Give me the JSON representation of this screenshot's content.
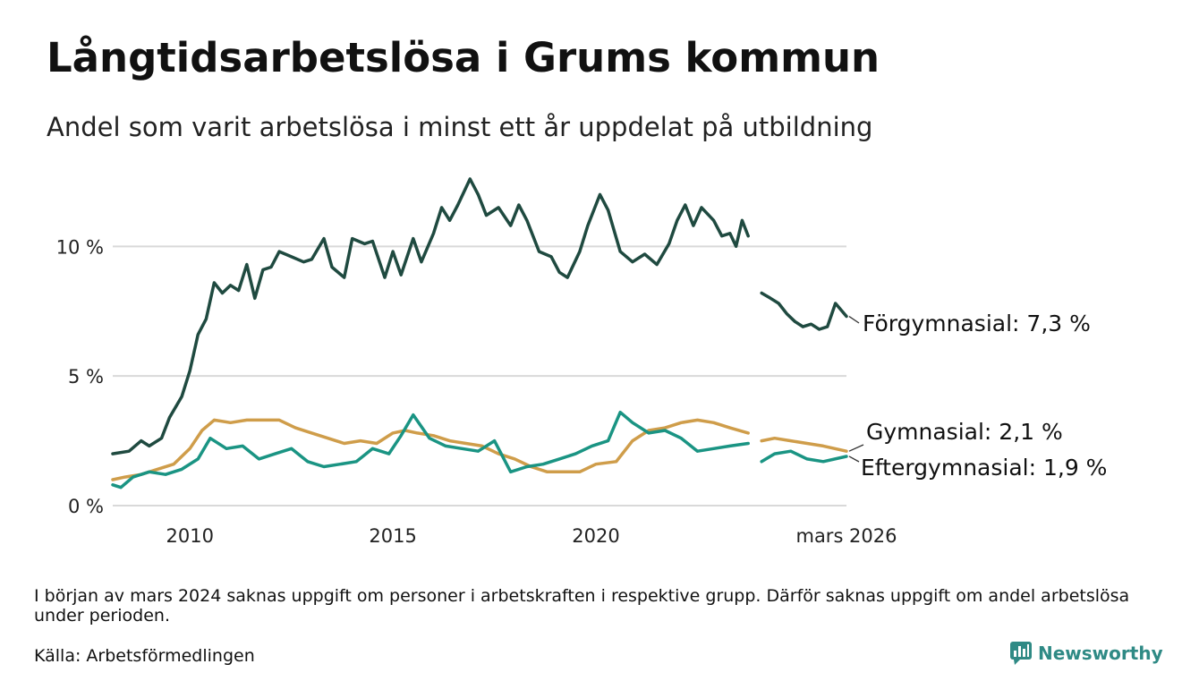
{
  "header": {
    "title": "Långtidsarbetslösa i Grums kommun",
    "subtitle": "Andel som varit arbetslösa i minst ett år uppdelat på utbildning"
  },
  "footer": {
    "note": "I början av mars 2024 saknas uppgift om personer i arbetskraften i respektive grupp. Därför saknas uppgift om andel arbetslösa under perioden.",
    "source": "Källa: Arbetsförmedlingen",
    "brand": "Newsworthy"
  },
  "colors": {
    "forgymnasial": "#1f4a40",
    "gymnasial": "#cf9d4a",
    "eftergymnasial": "#1a9483",
    "grid": "#d9d9d9",
    "brand": "#2f8a85"
  },
  "chart_data": {
    "type": "line",
    "title": "Långtidsarbetslösa i Grums kommun",
    "ylim": [
      0,
      12.6
    ],
    "yticks": [
      0,
      5,
      10
    ],
    "ytick_labels": [
      "0 %",
      "5 %",
      "10 %"
    ],
    "xlim": [
      2008.1,
      2026.17
    ],
    "xticks": [
      2010,
      2015,
      2020,
      2026.17
    ],
    "xtick_labels": [
      "2010",
      "2015",
      "2020",
      "mars 2026"
    ],
    "gap": [
      2023.75,
      2024.08
    ],
    "series": [
      {
        "name": "Förgymnasial",
        "label": "Förgymnasial: 7,3 %",
        "color": "#1f4a40",
        "points": [
          [
            2008.1,
            2.0
          ],
          [
            2008.5,
            2.1
          ],
          [
            2008.8,
            2.5
          ],
          [
            2009.0,
            2.3
          ],
          [
            2009.3,
            2.6
          ],
          [
            2009.5,
            3.4
          ],
          [
            2009.8,
            4.2
          ],
          [
            2010.0,
            5.2
          ],
          [
            2010.2,
            6.6
          ],
          [
            2010.4,
            7.2
          ],
          [
            2010.6,
            8.6
          ],
          [
            2010.8,
            8.2
          ],
          [
            2011.0,
            8.5
          ],
          [
            2011.2,
            8.3
          ],
          [
            2011.4,
            9.3
          ],
          [
            2011.6,
            8.0
          ],
          [
            2011.8,
            9.1
          ],
          [
            2012.0,
            9.2
          ],
          [
            2012.2,
            9.8
          ],
          [
            2012.5,
            9.6
          ],
          [
            2012.8,
            9.4
          ],
          [
            2013.0,
            9.5
          ],
          [
            2013.3,
            10.3
          ],
          [
            2013.5,
            9.2
          ],
          [
            2013.8,
            8.8
          ],
          [
            2014.0,
            10.3
          ],
          [
            2014.3,
            10.1
          ],
          [
            2014.5,
            10.2
          ],
          [
            2014.8,
            8.8
          ],
          [
            2015.0,
            9.8
          ],
          [
            2015.2,
            8.9
          ],
          [
            2015.5,
            10.3
          ],
          [
            2015.7,
            9.4
          ],
          [
            2016.0,
            10.5
          ],
          [
            2016.2,
            11.5
          ],
          [
            2016.4,
            11.0
          ],
          [
            2016.6,
            11.6
          ],
          [
            2016.9,
            12.6
          ],
          [
            2017.1,
            12.0
          ],
          [
            2017.3,
            11.2
          ],
          [
            2017.6,
            11.5
          ],
          [
            2017.9,
            10.8
          ],
          [
            2018.1,
            11.6
          ],
          [
            2018.3,
            11.0
          ],
          [
            2018.6,
            9.8
          ],
          [
            2018.9,
            9.6
          ],
          [
            2019.1,
            9.0
          ],
          [
            2019.3,
            8.8
          ],
          [
            2019.6,
            9.8
          ],
          [
            2019.8,
            10.8
          ],
          [
            2020.1,
            12.0
          ],
          [
            2020.3,
            11.4
          ],
          [
            2020.6,
            9.8
          ],
          [
            2020.9,
            9.4
          ],
          [
            2021.2,
            9.7
          ],
          [
            2021.5,
            9.3
          ],
          [
            2021.8,
            10.1
          ],
          [
            2022.0,
            11.0
          ],
          [
            2022.2,
            11.6
          ],
          [
            2022.4,
            10.8
          ],
          [
            2022.6,
            11.5
          ],
          [
            2022.9,
            11.0
          ],
          [
            2023.1,
            10.4
          ],
          [
            2023.3,
            10.5
          ],
          [
            2023.45,
            10.0
          ],
          [
            2023.6,
            11.0
          ],
          [
            2023.75,
            10.4
          ],
          [
            2024.08,
            8.2
          ],
          [
            2024.3,
            8.0
          ],
          [
            2024.5,
            7.8
          ],
          [
            2024.7,
            7.4
          ],
          [
            2024.9,
            7.1
          ],
          [
            2025.1,
            6.9
          ],
          [
            2025.3,
            7.0
          ],
          [
            2025.5,
            6.8
          ],
          [
            2025.7,
            6.9
          ],
          [
            2025.9,
            7.8
          ],
          [
            2026.17,
            7.3
          ]
        ]
      },
      {
        "name": "Gymnasial",
        "label": "Gymnasial: 2,1 %",
        "color": "#cf9d4a",
        "points": [
          [
            2008.1,
            1.0
          ],
          [
            2008.4,
            1.1
          ],
          [
            2008.8,
            1.2
          ],
          [
            2009.2,
            1.4
          ],
          [
            2009.6,
            1.6
          ],
          [
            2010.0,
            2.2
          ],
          [
            2010.3,
            2.9
          ],
          [
            2010.6,
            3.3
          ],
          [
            2011.0,
            3.2
          ],
          [
            2011.4,
            3.3
          ],
          [
            2011.8,
            3.3
          ],
          [
            2012.2,
            3.3
          ],
          [
            2012.6,
            3.0
          ],
          [
            2013.0,
            2.8
          ],
          [
            2013.4,
            2.6
          ],
          [
            2013.8,
            2.4
          ],
          [
            2014.2,
            2.5
          ],
          [
            2014.6,
            2.4
          ],
          [
            2015.0,
            2.8
          ],
          [
            2015.3,
            2.9
          ],
          [
            2015.6,
            2.8
          ],
          [
            2016.0,
            2.7
          ],
          [
            2016.4,
            2.5
          ],
          [
            2016.8,
            2.4
          ],
          [
            2017.2,
            2.3
          ],
          [
            2017.6,
            2.0
          ],
          [
            2018.0,
            1.8
          ],
          [
            2018.4,
            1.5
          ],
          [
            2018.8,
            1.3
          ],
          [
            2019.2,
            1.3
          ],
          [
            2019.6,
            1.3
          ],
          [
            2020.0,
            1.6
          ],
          [
            2020.5,
            1.7
          ],
          [
            2020.9,
            2.5
          ],
          [
            2021.3,
            2.9
          ],
          [
            2021.7,
            3.0
          ],
          [
            2022.1,
            3.2
          ],
          [
            2022.5,
            3.3
          ],
          [
            2022.9,
            3.2
          ],
          [
            2023.3,
            3.0
          ],
          [
            2023.75,
            2.8
          ],
          [
            2024.08,
            2.5
          ],
          [
            2024.4,
            2.6
          ],
          [
            2024.8,
            2.5
          ],
          [
            2025.2,
            2.4
          ],
          [
            2025.6,
            2.3
          ],
          [
            2026.17,
            2.1
          ]
        ]
      },
      {
        "name": "Eftergymnasial",
        "label": "Eftergymnasial: 1,9 %",
        "color": "#1a9483",
        "points": [
          [
            2008.1,
            0.8
          ],
          [
            2008.3,
            0.7
          ],
          [
            2008.6,
            1.1
          ],
          [
            2009.0,
            1.3
          ],
          [
            2009.4,
            1.2
          ],
          [
            2009.8,
            1.4
          ],
          [
            2010.2,
            1.8
          ],
          [
            2010.5,
            2.6
          ],
          [
            2010.9,
            2.2
          ],
          [
            2011.3,
            2.3
          ],
          [
            2011.7,
            1.8
          ],
          [
            2012.1,
            2.0
          ],
          [
            2012.5,
            2.2
          ],
          [
            2012.9,
            1.7
          ],
          [
            2013.3,
            1.5
          ],
          [
            2013.7,
            1.6
          ],
          [
            2014.1,
            1.7
          ],
          [
            2014.5,
            2.2
          ],
          [
            2014.9,
            2.0
          ],
          [
            2015.2,
            2.7
          ],
          [
            2015.5,
            3.5
          ],
          [
            2015.9,
            2.6
          ],
          [
            2016.3,
            2.3
          ],
          [
            2016.7,
            2.2
          ],
          [
            2017.1,
            2.1
          ],
          [
            2017.5,
            2.5
          ],
          [
            2017.9,
            1.3
          ],
          [
            2018.3,
            1.5
          ],
          [
            2018.7,
            1.6
          ],
          [
            2019.1,
            1.8
          ],
          [
            2019.5,
            2.0
          ],
          [
            2019.9,
            2.3
          ],
          [
            2020.3,
            2.5
          ],
          [
            2020.6,
            3.6
          ],
          [
            2020.9,
            3.2
          ],
          [
            2021.3,
            2.8
          ],
          [
            2021.7,
            2.9
          ],
          [
            2022.1,
            2.6
          ],
          [
            2022.5,
            2.1
          ],
          [
            2022.9,
            2.2
          ],
          [
            2023.3,
            2.3
          ],
          [
            2023.75,
            2.4
          ],
          [
            2024.08,
            1.7
          ],
          [
            2024.4,
            2.0
          ],
          [
            2024.8,
            2.1
          ],
          [
            2025.2,
            1.8
          ],
          [
            2025.6,
            1.7
          ],
          [
            2026.17,
            1.9
          ]
        ]
      }
    ]
  }
}
